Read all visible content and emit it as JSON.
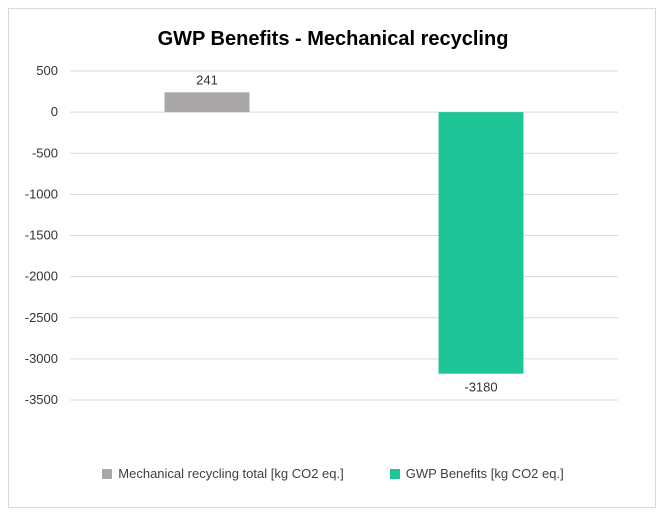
{
  "chart_data": {
    "type": "bar",
    "title": "GWP Benefits - Mechanical recycling",
    "xlabel": "",
    "ylabel": "",
    "ylim": [
      -3500,
      500
    ],
    "yticks": [
      500,
      0,
      -500,
      -1000,
      -1500,
      -2000,
      -2500,
      -3000,
      -3500
    ],
    "grid": true,
    "legend_position": "bottom",
    "series": [
      {
        "name": "Mechanical recycling total [kg CO2 eq.]",
        "value": 241,
        "label": "241",
        "color": "#aaa7a8"
      },
      {
        "name": "GWP Benefits  [kg CO2 eq.]",
        "value": -3180,
        "label": "-3180",
        "color": "#1fc597"
      }
    ]
  }
}
